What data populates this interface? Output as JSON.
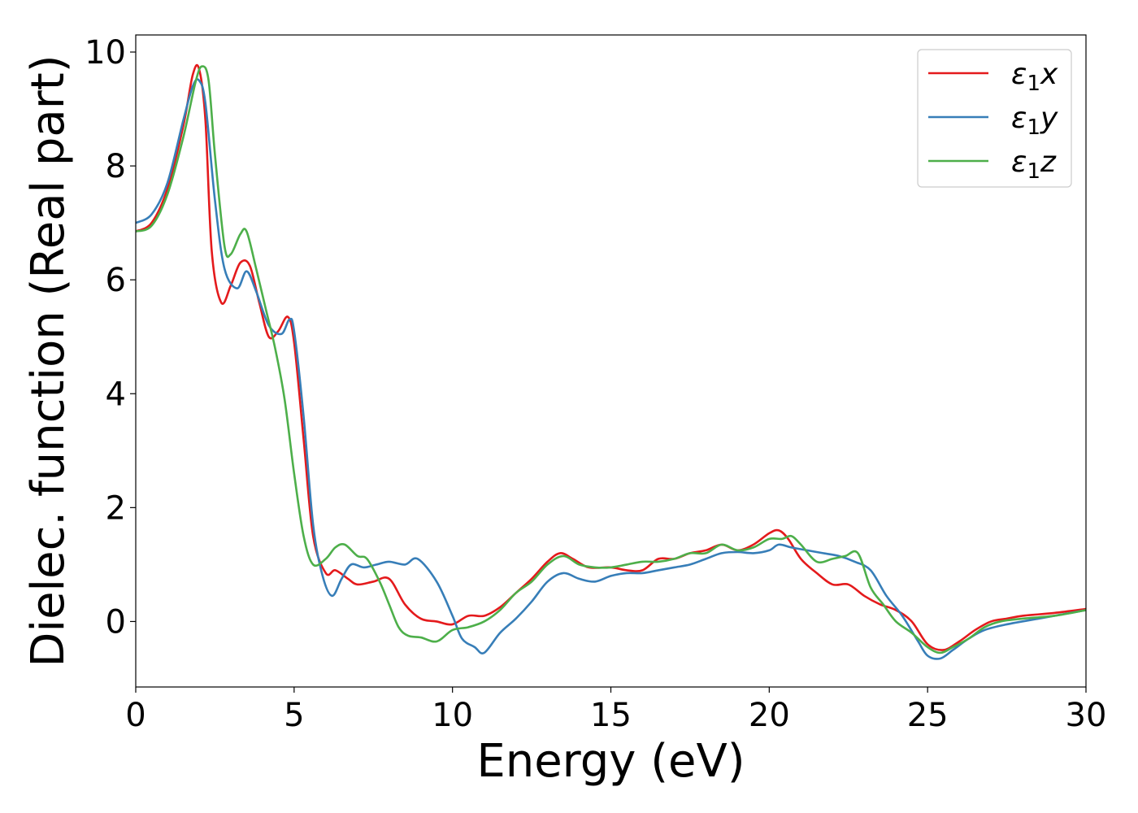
{
  "chart_data": {
    "type": "line",
    "xlabel": "Energy (eV)",
    "ylabel": "Dielec. function (Real part)",
    "xlim": [
      0,
      30
    ],
    "ylim": [
      -1.15,
      10.3
    ],
    "xticks": [
      0,
      5,
      10,
      15,
      20,
      25,
      30
    ],
    "yticks": [
      0,
      2,
      4,
      6,
      8,
      10
    ],
    "grid": false,
    "legend_position": "top-right",
    "series": [
      {
        "name": "ε1x",
        "legend": {
          "base": "ε",
          "sub": "1",
          "suffix": "x"
        },
        "color": "#e41a1c",
        "x": [
          0,
          0.5,
          1.0,
          1.5,
          1.8,
          2.0,
          2.2,
          2.4,
          2.7,
          3.0,
          3.3,
          3.6,
          3.9,
          4.2,
          4.5,
          4.8,
          5.0,
          5.3,
          5.6,
          6.0,
          6.3,
          6.7,
          7.0,
          7.5,
          8.0,
          8.5,
          9.0,
          9.5,
          10.0,
          10.5,
          11.0,
          11.5,
          12.0,
          12.5,
          13.0,
          13.4,
          13.8,
          14.3,
          15.0,
          15.5,
          16.0,
          16.5,
          17.0,
          17.5,
          18.0,
          18.5,
          19.0,
          19.5,
          20.0,
          20.3,
          20.6,
          21.0,
          21.5,
          22.0,
          22.5,
          23.0,
          23.5,
          24.0,
          24.5,
          25.0,
          25.5,
          26.0,
          26.5,
          27.0,
          27.5,
          28.0,
          29.0,
          30.0
        ],
        "y": [
          6.85,
          7.0,
          7.6,
          8.7,
          9.6,
          9.7,
          8.8,
          6.5,
          5.6,
          5.9,
          6.3,
          6.25,
          5.6,
          5.0,
          5.1,
          5.35,
          4.9,
          3.2,
          1.5,
          0.85,
          0.9,
          0.75,
          0.65,
          0.7,
          0.75,
          0.3,
          0.05,
          0.0,
          -0.05,
          0.1,
          0.1,
          0.25,
          0.5,
          0.75,
          1.05,
          1.2,
          1.1,
          0.95,
          0.95,
          0.9,
          0.9,
          1.1,
          1.1,
          1.2,
          1.25,
          1.35,
          1.25,
          1.35,
          1.55,
          1.6,
          1.45,
          1.1,
          0.85,
          0.65,
          0.65,
          0.45,
          0.3,
          0.2,
          0.0,
          -0.4,
          -0.5,
          -0.35,
          -0.15,
          0.0,
          0.05,
          0.1,
          0.15,
          0.22
        ]
      },
      {
        "name": "ε1y",
        "legend": {
          "base": "ε",
          "sub": "1",
          "suffix": "y"
        },
        "color": "#377eb8",
        "x": [
          0,
          0.5,
          1.0,
          1.5,
          1.8,
          2.0,
          2.2,
          2.5,
          2.8,
          3.2,
          3.5,
          3.8,
          4.2,
          4.6,
          4.85,
          5.0,
          5.3,
          5.6,
          5.9,
          6.2,
          6.5,
          6.8,
          7.2,
          7.6,
          8.0,
          8.5,
          8.9,
          9.5,
          10.0,
          10.3,
          10.7,
          11.0,
          11.5,
          12.0,
          12.5,
          13.0,
          13.5,
          14.0,
          14.5,
          15.0,
          15.5,
          16.0,
          16.5,
          17.0,
          17.5,
          18.0,
          18.5,
          19.0,
          19.5,
          20.0,
          20.3,
          20.7,
          21.2,
          21.7,
          22.2,
          22.7,
          23.2,
          23.7,
          24.2,
          24.7,
          25.0,
          25.4,
          25.8,
          26.3,
          26.8,
          27.5,
          28.5,
          29.0,
          30.0
        ],
        "y": [
          7.0,
          7.15,
          7.7,
          8.8,
          9.4,
          9.5,
          9.1,
          7.4,
          6.2,
          5.85,
          6.15,
          5.8,
          5.2,
          5.05,
          5.3,
          5.1,
          3.6,
          1.7,
          0.8,
          0.45,
          0.75,
          1.0,
          0.95,
          1.0,
          1.05,
          1.0,
          1.1,
          0.7,
          0.1,
          -0.3,
          -0.45,
          -0.55,
          -0.2,
          0.05,
          0.35,
          0.7,
          0.85,
          0.75,
          0.7,
          0.8,
          0.85,
          0.85,
          0.9,
          0.95,
          1.0,
          1.1,
          1.2,
          1.22,
          1.2,
          1.25,
          1.35,
          1.3,
          1.25,
          1.2,
          1.15,
          1.05,
          0.9,
          0.45,
          0.1,
          -0.35,
          -0.6,
          -0.65,
          -0.5,
          -0.3,
          -0.15,
          -0.05,
          0.05,
          0.1,
          0.2
        ]
      },
      {
        "name": "ε1z",
        "legend": {
          "base": "ε",
          "sub": "1",
          "suffix": "z"
        },
        "color": "#4daf4a",
        "x": [
          0,
          0.5,
          1.0,
          1.5,
          1.9,
          2.1,
          2.3,
          2.5,
          2.8,
          3.0,
          3.3,
          3.5,
          3.8,
          4.1,
          4.4,
          4.7,
          5.0,
          5.3,
          5.6,
          6.0,
          6.3,
          6.6,
          7.0,
          7.3,
          7.7,
          8.0,
          8.3,
          8.6,
          9.0,
          9.5,
          10.0,
          10.5,
          11.0,
          11.5,
          12.0,
          12.5,
          13.0,
          13.5,
          14.0,
          14.5,
          15.0,
          15.5,
          16.0,
          16.5,
          17.0,
          17.5,
          18.0,
          18.5,
          19.0,
          19.5,
          20.0,
          20.4,
          20.7,
          21.0,
          21.5,
          22.0,
          22.4,
          22.8,
          23.2,
          23.6,
          24.0,
          24.5,
          25.0,
          25.4,
          25.8,
          26.3,
          26.8,
          27.3,
          28.0,
          29.0,
          30.0
        ],
        "y": [
          6.85,
          6.95,
          7.5,
          8.5,
          9.5,
          9.75,
          9.5,
          8.2,
          6.6,
          6.45,
          6.8,
          6.85,
          6.2,
          5.5,
          4.8,
          3.9,
          2.6,
          1.5,
          1.0,
          1.1,
          1.3,
          1.35,
          1.15,
          1.1,
          0.7,
          0.3,
          -0.1,
          -0.25,
          -0.28,
          -0.35,
          -0.15,
          -0.1,
          0.0,
          0.2,
          0.5,
          0.7,
          1.0,
          1.15,
          1.0,
          0.95,
          0.95,
          1.0,
          1.05,
          1.05,
          1.1,
          1.2,
          1.2,
          1.35,
          1.25,
          1.3,
          1.45,
          1.45,
          1.5,
          1.35,
          1.05,
          1.1,
          1.15,
          1.2,
          0.6,
          0.3,
          0.0,
          -0.2,
          -0.45,
          -0.55,
          -0.45,
          -0.3,
          -0.1,
          0.0,
          0.05,
          0.1,
          0.2
        ]
      }
    ]
  }
}
